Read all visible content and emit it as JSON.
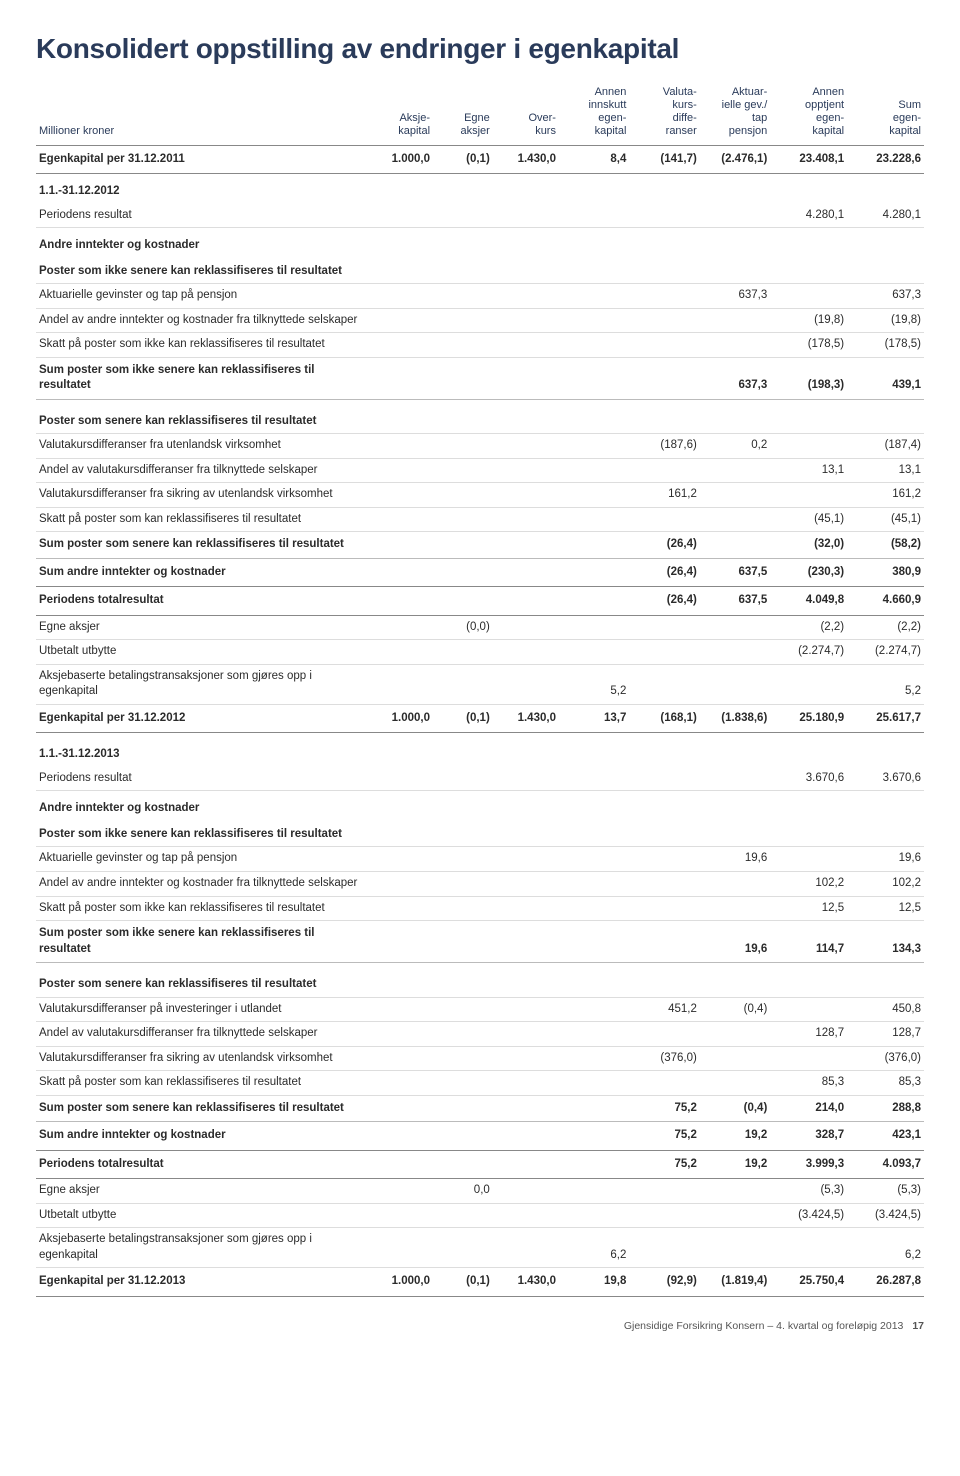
{
  "title": "Konsolidert oppstilling av endringer i egenkapital",
  "columns": [
    "Millioner kroner",
    "Aksje-\nkapital",
    "Egne\naksjer",
    "Over-\nkurs",
    "Annen\ninnskutt\negen-\nkapital",
    "Valuta-\nkurs-\ndiffe-\nranser",
    "Aktuar-\nielle gev./\ntap\npensjon",
    "Annen\nopptjent\negen-\nkapital",
    "Sum\negen-\nkapital"
  ],
  "cw": [
    "310px",
    "62px",
    "56px",
    "62px",
    "66px",
    "66px",
    "66px",
    "72px",
    "72px"
  ],
  "rows": [
    {
      "c": "heavy",
      "d": [
        "Egenkapital per 31.12.2011",
        "1.000,0",
        "(0,1)",
        "1.430,0",
        "8,4",
        "(141,7)",
        "(2.476,1)",
        "23.408,1",
        "23.228,6"
      ]
    },
    {
      "c": "section",
      "d": [
        "1.1.-31.12.2012",
        "",
        "",
        "",
        "",
        "",
        "",
        "",
        ""
      ]
    },
    {
      "c": "light",
      "d": [
        "Periodens resultat",
        "",
        "",
        "",
        "",
        "",
        "",
        "4.280,1",
        "4.280,1"
      ]
    },
    {
      "c": "section",
      "d": [
        "Andre inntekter og kostnader",
        "",
        "",
        "",
        "",
        "",
        "",
        "",
        ""
      ]
    },
    {
      "c": "subhead",
      "d": [
        "Poster som ikke senere kan reklassifiseres til resultatet",
        "",
        "",
        "",
        "",
        "",
        "",
        "",
        ""
      ]
    },
    {
      "c": "light",
      "d": [
        "Aktuarielle gevinster og tap på pensjon",
        "",
        "",
        "",
        "",
        "",
        "637,3",
        "",
        "637,3"
      ]
    },
    {
      "c": "light",
      "d": [
        "Andel av andre inntekter og kostnader fra tilknyttede selskaper",
        "",
        "",
        "",
        "",
        "",
        "",
        "(19,8)",
        "(19,8)"
      ]
    },
    {
      "c": "light",
      "d": [
        "Skatt på poster som ikke kan reklassifiseres til resultatet",
        "",
        "",
        "",
        "",
        "",
        "",
        "(178,5)",
        "(178,5)"
      ]
    },
    {
      "c": "medium",
      "d": [
        "Sum poster som ikke senere kan reklassifiseres til resultatet",
        "",
        "",
        "",
        "",
        "",
        "637,3",
        "(198,3)",
        "439,1"
      ]
    },
    {
      "c": "subhead spacer",
      "d": [
        "Poster som senere kan reklassifiseres til resultatet",
        "",
        "",
        "",
        "",
        "",
        "",
        "",
        ""
      ]
    },
    {
      "c": "light",
      "d": [
        "Valutakursdifferanser fra utenlandsk virksomhet",
        "",
        "",
        "",
        "",
        "(187,6)",
        "0,2",
        "",
        "(187,4)"
      ]
    },
    {
      "c": "light",
      "d": [
        "Andel av valutakursdifferanser fra tilknyttede selskaper",
        "",
        "",
        "",
        "",
        "",
        "",
        "13,1",
        "13,1"
      ]
    },
    {
      "c": "light",
      "d": [
        "Valutakursdifferanser fra sikring av utenlandsk virksomhet",
        "",
        "",
        "",
        "",
        "161,2",
        "",
        "",
        "161,2"
      ]
    },
    {
      "c": "light",
      "d": [
        "Skatt på poster som kan reklassifiseres til resultatet",
        "",
        "",
        "",
        "",
        "",
        "",
        "(45,1)",
        "(45,1)"
      ]
    },
    {
      "c": "medium",
      "d": [
        "Sum poster som senere kan reklassifiseres til resultatet",
        "",
        "",
        "",
        "",
        "(26,4)",
        "",
        "(32,0)",
        "(58,2)"
      ]
    },
    {
      "c": "heavy",
      "d": [
        "Sum andre inntekter og kostnader",
        "",
        "",
        "",
        "",
        "(26,4)",
        "637,5",
        "(230,3)",
        "380,9"
      ]
    },
    {
      "c": "heavy",
      "d": [
        "Periodens totalresultat",
        "",
        "",
        "",
        "",
        "(26,4)",
        "637,5",
        "4.049,8",
        "4.660,9"
      ]
    },
    {
      "c": "light",
      "d": [
        "Egne aksjer",
        "",
        "(0,0)",
        "",
        "",
        "",
        "",
        "(2,2)",
        "(2,2)"
      ]
    },
    {
      "c": "light",
      "d": [
        "Utbetalt utbytte",
        "",
        "",
        "",
        "",
        "",
        "",
        "(2.274,7)",
        "(2.274,7)"
      ]
    },
    {
      "c": "light",
      "d": [
        "Aksjebaserte betalingstransaksjoner som gjøres opp i egenkapital",
        "",
        "",
        "",
        "5,2",
        "",
        "",
        "",
        "5,2"
      ]
    },
    {
      "c": "heavy",
      "d": [
        "Egenkapital per 31.12.2012",
        "1.000,0",
        "(0,1)",
        "1.430,0",
        "13,7",
        "(168,1)",
        "(1.838,6)",
        "25.180,9",
        "25.617,7"
      ]
    },
    {
      "c": "section spacer",
      "d": [
        "1.1.-31.12.2013",
        "",
        "",
        "",
        "",
        "",
        "",
        "",
        ""
      ]
    },
    {
      "c": "light",
      "d": [
        "Periodens resultat",
        "",
        "",
        "",
        "",
        "",
        "",
        "3.670,6",
        "3.670,6"
      ]
    },
    {
      "c": "section",
      "d": [
        "Andre inntekter og kostnader",
        "",
        "",
        "",
        "",
        "",
        "",
        "",
        ""
      ]
    },
    {
      "c": "subhead",
      "d": [
        "Poster som ikke senere kan reklassifiseres til resultatet",
        "",
        "",
        "",
        "",
        "",
        "",
        "",
        ""
      ]
    },
    {
      "c": "light",
      "d": [
        "Aktuarielle gevinster og tap på pensjon",
        "",
        "",
        "",
        "",
        "",
        "19,6",
        "",
        "19,6"
      ]
    },
    {
      "c": "light",
      "d": [
        "Andel av andre inntekter og kostnader fra tilknyttede selskaper",
        "",
        "",
        "",
        "",
        "",
        "",
        "102,2",
        "102,2"
      ]
    },
    {
      "c": "light",
      "d": [
        "Skatt på poster som ikke kan reklassifiseres til resultatet",
        "",
        "",
        "",
        "",
        "",
        "",
        "12,5",
        "12,5"
      ]
    },
    {
      "c": "medium",
      "d": [
        "Sum poster som ikke senere kan reklassifiseres til resultatet",
        "",
        "",
        "",
        "",
        "",
        "19,6",
        "114,7",
        "134,3"
      ]
    },
    {
      "c": "subhead spacer",
      "d": [
        "Poster som senere kan reklassifiseres til resultatet",
        "",
        "",
        "",
        "",
        "",
        "",
        "",
        ""
      ]
    },
    {
      "c": "light",
      "d": [
        "Valutakursdifferanser på investeringer i utlandet",
        "",
        "",
        "",
        "",
        "451,2",
        "(0,4)",
        "",
        "450,8"
      ]
    },
    {
      "c": "light",
      "d": [
        "Andel av valutakursdifferanser fra tilknyttede selskaper",
        "",
        "",
        "",
        "",
        "",
        "",
        "128,7",
        "128,7"
      ]
    },
    {
      "c": "light",
      "d": [
        "Valutakursdifferanser fra sikring av utenlandsk virksomhet",
        "",
        "",
        "",
        "",
        "(376,0)",
        "",
        "",
        "(376,0)"
      ]
    },
    {
      "c": "light",
      "d": [
        "Skatt på poster som kan reklassifiseres til resultatet",
        "",
        "",
        "",
        "",
        "",
        "",
        "85,3",
        "85,3"
      ]
    },
    {
      "c": "medium",
      "d": [
        "Sum poster som senere kan reklassifiseres til resultatet",
        "",
        "",
        "",
        "",
        "75,2",
        "(0,4)",
        "214,0",
        "288,8"
      ]
    },
    {
      "c": "heavy",
      "d": [
        "Sum andre inntekter og kostnader",
        "",
        "",
        "",
        "",
        "75,2",
        "19,2",
        "328,7",
        "423,1"
      ]
    },
    {
      "c": "heavy",
      "d": [
        "Periodens totalresultat",
        "",
        "",
        "",
        "",
        "75,2",
        "19,2",
        "3.999,3",
        "4.093,7"
      ]
    },
    {
      "c": "light",
      "d": [
        "Egne aksjer",
        "",
        "0,0",
        "",
        "",
        "",
        "",
        "(5,3)",
        "(5,3)"
      ]
    },
    {
      "c": "light",
      "d": [
        "Utbetalt utbytte",
        "",
        "",
        "",
        "",
        "",
        "",
        "(3.424,5)",
        "(3.424,5)"
      ]
    },
    {
      "c": "light",
      "d": [
        "Aksjebaserte betalingstransaksjoner som gjøres opp i egenkapital",
        "",
        "",
        "",
        "6,2",
        "",
        "",
        "",
        "6,2"
      ]
    },
    {
      "c": "heavy",
      "d": [
        "Egenkapital per 31.12.2013",
        "1.000,0",
        "(0,1)",
        "1.430,0",
        "19,8",
        "(92,9)",
        "(1.819,4)",
        "25.750,4",
        "26.287,8"
      ]
    }
  ],
  "footer_text": "Gjensidige Forsikring Konsern – 4. kvartal og foreløpig 2013",
  "page_num": "17"
}
